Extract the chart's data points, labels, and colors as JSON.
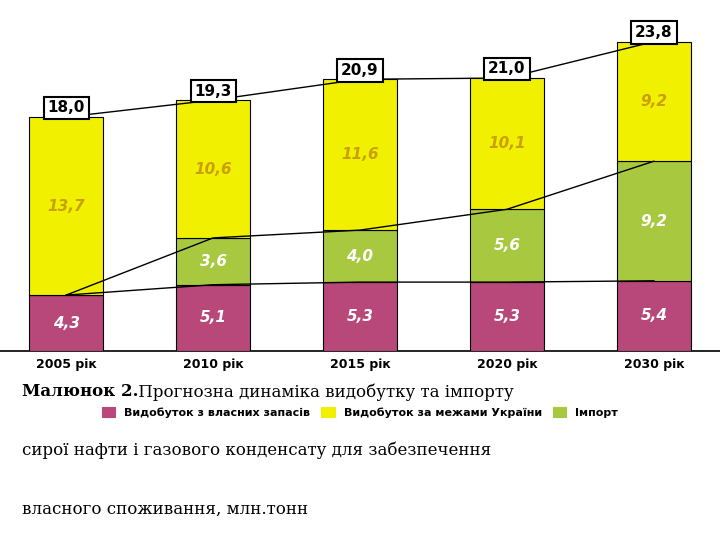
{
  "years": [
    "2005 рік",
    "2010 рік",
    "2015 рік",
    "2020 рік",
    "2030 рік"
  ],
  "x_positions": [
    0,
    1,
    2,
    3,
    4
  ],
  "series1_vlastni": [
    4.3,
    5.1,
    5.3,
    5.3,
    5.4
  ],
  "series2_import": [
    0.0,
    3.6,
    4.0,
    5.6,
    9.2
  ],
  "series3_mezhi": [
    13.7,
    10.6,
    11.6,
    10.1,
    9.2
  ],
  "totals": [
    18.0,
    19.3,
    20.9,
    21.0,
    23.8
  ],
  "color_vlastni": "#b8477a",
  "color_import": "#a8c840",
  "color_mezhi": "#f0f000",
  "bar_width": 0.5,
  "legend_vlastni": "Видобуток з власних запасів",
  "legend_mezhi": "Видобуток за межами України",
  "legend_import": "Імпорт",
  "caption_bold": "Малюнок 2.",
  "caption_normal": " Прогнозна динаміка видобутку та імпорту сирої нафти і газового конденсату для забезпечення власного споживання, млн.тонн",
  "chart_bg": "#ffffff",
  "caption_bg": "#c8c8c8",
  "fig_bg": "#ffffff"
}
